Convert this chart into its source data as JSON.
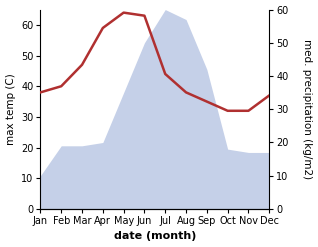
{
  "months": [
    "Jan",
    "Feb",
    "Mar",
    "Apr",
    "May",
    "Jun",
    "Jul",
    "Aug",
    "Sep",
    "Oct",
    "Nov",
    "Dec"
  ],
  "temperature": [
    38,
    40,
    47,
    59,
    64,
    63,
    44,
    38,
    35,
    32,
    32,
    37
  ],
  "precipitation": [
    10,
    19,
    19,
    20,
    35,
    50,
    60,
    57,
    42,
    18,
    17,
    17
  ],
  "temp_color": "#b03030",
  "precip_color": "#c5d0e8",
  "ylabel_left": "max temp (C)",
  "ylabel_right": "med. precipitation (kg/m2)",
  "xlabel": "date (month)",
  "ylim_left": [
    0,
    65
  ],
  "ylim_right": [
    0,
    60
  ],
  "yticks_left": [
    0,
    10,
    20,
    30,
    40,
    50,
    60
  ],
  "yticks_right": [
    0,
    10,
    20,
    30,
    40,
    50,
    60
  ],
  "bg_color": "#ffffff",
  "temp_linewidth": 1.8,
  "xlabel_fontsize": 8,
  "ylabel_fontsize": 7.5,
  "tick_fontsize": 7
}
